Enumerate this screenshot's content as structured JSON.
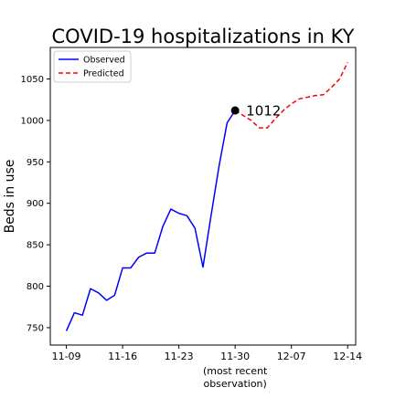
{
  "chart_data": {
    "type": "line",
    "title": "COVID-19 hospitalizations in KY",
    "xlabel": "",
    "ylabel": "Beds in use",
    "xlim": [
      "2020-11-07",
      "2020-12-15"
    ],
    "ylim": [
      729,
      1088
    ],
    "grid": false,
    "legend_position": "top-left",
    "x_ticks": [
      {
        "date": "2020-11-09",
        "label": "11-09"
      },
      {
        "date": "2020-11-16",
        "label": "11-16"
      },
      {
        "date": "2020-11-23",
        "label": "11-23"
      },
      {
        "date": "2020-11-30",
        "label": "11-30",
        "sublabel": "(most recent\nobservation)"
      },
      {
        "date": "2020-12-07",
        "label": "12-07"
      },
      {
        "date": "2020-12-14",
        "label": "12-14"
      }
    ],
    "y_ticks": [
      750,
      800,
      850,
      900,
      950,
      1000,
      1050
    ],
    "series": [
      {
        "name": "Observed",
        "color": "#0000ff",
        "style": "solid",
        "x": [
          "2020-11-09",
          "2020-11-10",
          "2020-11-11",
          "2020-11-12",
          "2020-11-13",
          "2020-11-14",
          "2020-11-15",
          "2020-11-16",
          "2020-11-17",
          "2020-11-18",
          "2020-11-19",
          "2020-11-20",
          "2020-11-21",
          "2020-11-22",
          "2020-11-23",
          "2020-11-24",
          "2020-11-25",
          "2020-11-26",
          "2020-11-27",
          "2020-11-28",
          "2020-11-29",
          "2020-11-30"
        ],
        "values": [
          746,
          768,
          765,
          797,
          792,
          783,
          789,
          822,
          822,
          835,
          840,
          840,
          872,
          893,
          888,
          885,
          870,
          823,
          885,
          945,
          997,
          1012
        ]
      },
      {
        "name": "Predicted",
        "color": "#ff0000",
        "style": "dashed",
        "x": [
          "2020-11-30",
          "2020-12-01",
          "2020-12-02",
          "2020-12-03",
          "2020-12-04",
          "2020-12-05",
          "2020-12-06",
          "2020-12-07",
          "2020-12-08",
          "2020-12-09",
          "2020-12-10",
          "2020-12-11",
          "2020-12-12",
          "2020-12-13",
          "2020-12-14"
        ],
        "values": [
          1012,
          1006,
          1000,
          991,
          991,
          1002,
          1012,
          1020,
          1026,
          1028,
          1030,
          1031,
          1040,
          1050,
          1070
        ]
      }
    ],
    "annotations": [
      {
        "x": "2020-11-30",
        "y": 1012,
        "text": "1012",
        "marker": "dot"
      }
    ]
  }
}
